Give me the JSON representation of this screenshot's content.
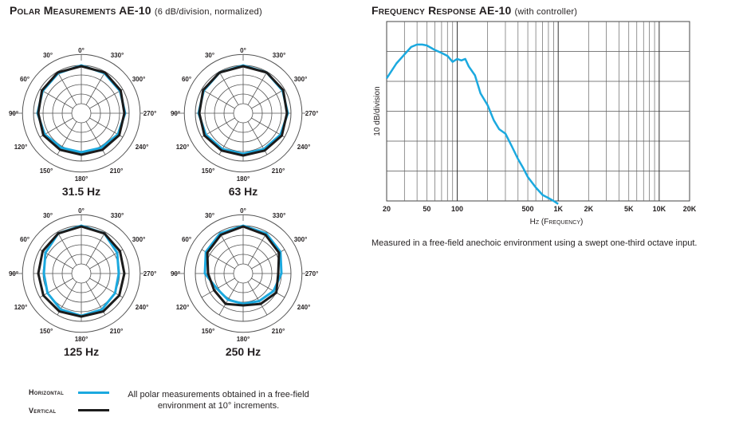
{
  "polar": {
    "title_main": "Polar Measurements AE-10",
    "title_sub": "(6 dB/division, normalized)",
    "angle_labels": [
      "0°",
      "30°",
      "60°",
      "90°",
      "120°",
      "150°",
      "180°",
      "210°",
      "240°",
      "270°",
      "300°",
      "330°"
    ],
    "colors": {
      "horizontal": "#1ba9df",
      "vertical": "#1c1c1c",
      "grid": "#555555"
    },
    "legend": {
      "horizontal_label": "Horizontal",
      "vertical_label": "Vertical",
      "note": "All polar measurements obtained in a free-field environment at 10° increments."
    }
  },
  "response": {
    "title_main": "Frequency Response AE-10",
    "title_sub": "(with controller)",
    "ylabel": "10 dB/division",
    "xlabel": "Hz (Frequency)",
    "x_ticks": [
      "20",
      "50",
      "100",
      "500",
      "1K",
      "2K",
      "5K",
      "10K",
      "20K"
    ],
    "note": "Measured in a free-field anechoic environment using a swept one-third octave input.",
    "color": "#1ba9df"
  },
  "chart_data": [
    {
      "type": "polar",
      "label": "31.5 Hz",
      "unit": "dB (6 dB/division, normalized)",
      "angles_deg": [
        0,
        30,
        60,
        90,
        120,
        150,
        180,
        210,
        240,
        270,
        300,
        330
      ],
      "series": [
        {
          "name": "Horizontal",
          "values": [
            0,
            -1,
            -2,
            -2.5,
            -3.5,
            -5,
            -5.5,
            -5,
            -3.5,
            -2.5,
            -2,
            -1
          ]
        },
        {
          "name": "Vertical",
          "values": [
            -0.5,
            -0.5,
            -1.5,
            -3,
            -2.5,
            -3.5,
            -4,
            -3.5,
            -2.5,
            -3,
            -1.5,
            -0.5
          ]
        }
      ]
    },
    {
      "type": "polar",
      "label": "63 Hz",
      "unit": "dB (6 dB/division, normalized)",
      "angles_deg": [
        0,
        30,
        60,
        90,
        120,
        150,
        180,
        210,
        240,
        270,
        300,
        330
      ],
      "series": [
        {
          "name": "Horizontal",
          "values": [
            0,
            -0.5,
            -1.5,
            -2,
            -3,
            -4,
            -4.5,
            -4,
            -3,
            -2,
            -1.5,
            -0.5
          ]
        },
        {
          "name": "Vertical",
          "values": [
            -0.5,
            -0.5,
            -1,
            -2.5,
            -2,
            -3,
            -3.5,
            -3,
            -2,
            -2.5,
            -1,
            -0.5
          ]
        }
      ]
    },
    {
      "type": "polar",
      "label": "125 Hz",
      "unit": "dB (6 dB/division, normalized)",
      "angles_deg": [
        0,
        30,
        60,
        90,
        120,
        150,
        180,
        210,
        240,
        270,
        300,
        330
      ],
      "series": [
        {
          "name": "Horizontal",
          "values": [
            0,
            -1,
            -4,
            -6.5,
            -5.5,
            -4,
            -3.5,
            -4,
            -5.5,
            -6.5,
            -4,
            -1
          ]
        },
        {
          "name": "Vertical",
          "values": [
            -0.5,
            -1,
            -2,
            -3,
            -2.5,
            -2.5,
            -3,
            -2.5,
            -2.5,
            -3,
            -2,
            -1
          ]
        }
      ]
    },
    {
      "type": "polar",
      "label": "250 Hz",
      "unit": "dB (6 dB/division, normalized)",
      "angles_deg": [
        0,
        30,
        60,
        90,
        120,
        150,
        180,
        210,
        240,
        270,
        300,
        330
      ],
      "series": [
        {
          "name": "Horizontal",
          "values": [
            0,
            -1,
            -3,
            -6,
            -11,
            -11,
            -11,
            -10,
            -8,
            -6,
            -3,
            -1
          ]
        },
        {
          "name": "Vertical",
          "values": [
            -0.5,
            -2,
            -4,
            -8,
            -9,
            -8,
            -10,
            -8,
            -6,
            -8,
            -4,
            -2
          ]
        }
      ]
    },
    {
      "type": "line",
      "title": "Frequency Response AE-10",
      "xlabel": "Hz (Frequency)",
      "ylabel": "10 dB/division",
      "x_scale": "log",
      "xlim": [
        20,
        20000
      ],
      "ylim": [
        -50,
        10
      ],
      "series": [
        {
          "x": [
            20,
            25,
            30,
            35,
            40,
            45,
            50,
            60,
            70,
            80,
            90,
            100,
            110,
            120,
            130,
            150,
            170,
            200,
            230,
            260,
            300,
            350,
            400,
            450,
            500,
            600,
            700,
            800,
            900,
            1000
          ],
          "y": [
            -9,
            -4,
            -1,
            1.5,
            2.3,
            2.3,
            2,
            0.5,
            -0.5,
            -1.5,
            -3.5,
            -2.5,
            -3,
            -2.5,
            -5,
            -8,
            -14,
            -18,
            -23,
            -26,
            -27.5,
            -32,
            -36,
            -39,
            -42,
            -45.5,
            -48,
            -49,
            -50,
            -51
          ]
        }
      ]
    }
  ]
}
